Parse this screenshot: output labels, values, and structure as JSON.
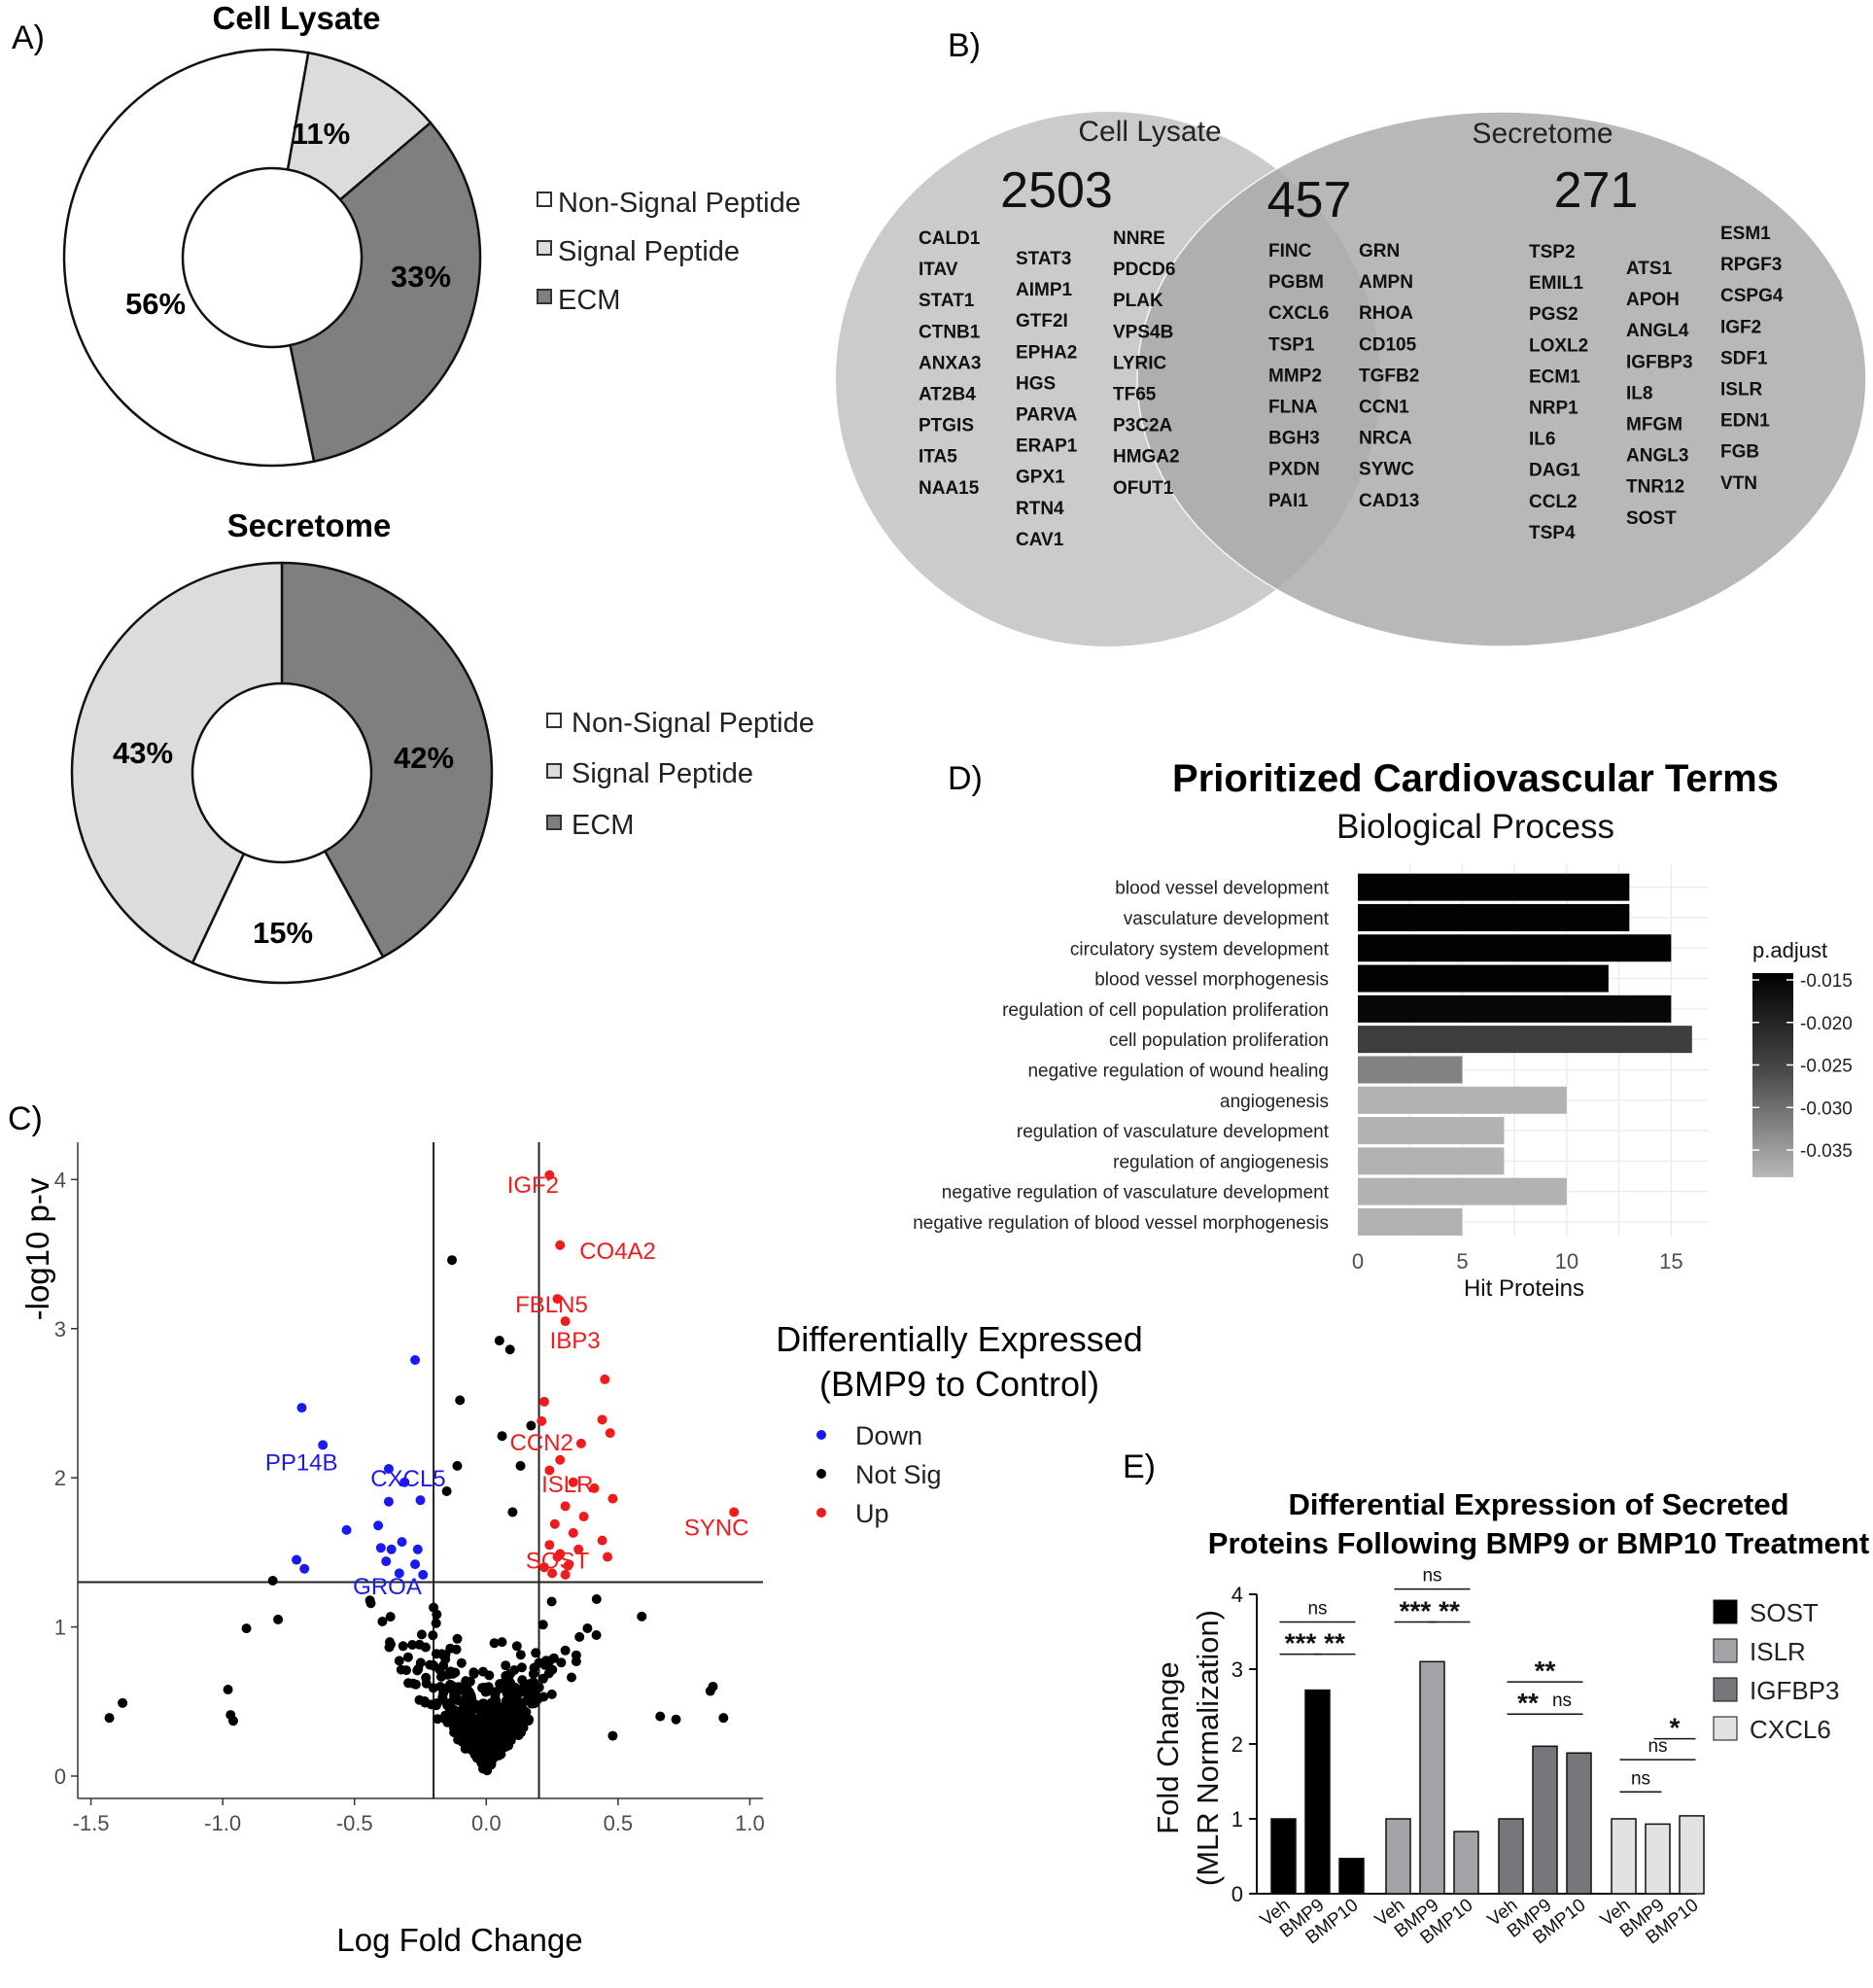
{
  "panel_labels": {
    "a": "A)",
    "b": "B)",
    "c": "C)",
    "d": "D)",
    "e": "E)"
  },
  "colors": {
    "non_signal": "#ffffff",
    "signal": "#dcdcdc",
    "ecm": "#7f7f7f",
    "up": "#ee1c1c",
    "down": "#1a1af0",
    "not_sig": "#000000",
    "sost": "#000000",
    "islr": "#a3a3a7",
    "igfbp3": "#77777b",
    "cxcl6": "#e2e2e2"
  },
  "chart_data": [
    {
      "type": "pie",
      "id": "donut_lysate",
      "title": "Cell Lysate",
      "categories": [
        "Signal Peptide",
        "ECM",
        "Non-Signal Peptide"
      ],
      "values": [
        11,
        33,
        56
      ],
      "labels": [
        "11%",
        "33%",
        "56%"
      ],
      "legend": [
        "Non-Signal Peptide",
        "Signal Peptide",
        "ECM"
      ]
    },
    {
      "type": "pie",
      "id": "donut_secretome",
      "title": "Secretome",
      "categories": [
        "ECM",
        "Non-Signal Peptide",
        "Signal Peptide"
      ],
      "values": [
        42,
        15,
        43
      ],
      "labels": [
        "42%",
        "15%",
        "43%"
      ],
      "legend": [
        "Non-Signal Peptide",
        "Signal Peptide",
        "ECM"
      ]
    },
    {
      "type": "venn",
      "id": "venn",
      "sets": [
        {
          "name": "Cell Lysate",
          "count": "2503",
          "columns": [
            [
              "CALD1",
              "ITAV",
              "STAT1",
              "CTNB1",
              "ANXA3",
              "AT2B4",
              "PTGIS",
              "ITA5",
              "NAA15"
            ],
            [
              "STAT3",
              "AIMP1",
              "GTF2I",
              "EPHA2",
              "HGS",
              "PARVA",
              "ERAP1",
              "GPX1",
              "RTN4",
              "CAV1"
            ],
            [
              "NNRE",
              "PDCD6",
              "PLAK",
              "VPS4B",
              "LYRIC",
              "TF65",
              "P3C2A",
              "HMGA2",
              "OFUT1"
            ]
          ]
        },
        {
          "name": "Secretome",
          "count": "271",
          "columns": [
            [
              "TSP2",
              "EMIL1",
              "PGS2",
              "LOXL2",
              "ECM1",
              "NRP1",
              "IL6",
              "DAG1",
              "CCL2",
              "TSP4"
            ],
            [
              "ATS1",
              "APOH",
              "ANGL4",
              "IGFBP3",
              "IL8",
              "MFGM",
              "ANGL3",
              "TNR12",
              "SOST"
            ],
            [
              "ESM1",
              "RPGF3",
              "CSPG4",
              "IGF2",
              "SDF1",
              "ISLR",
              "EDN1",
              "FGB",
              "VTN"
            ]
          ]
        }
      ],
      "overlap": {
        "count": "457",
        "columns": [
          [
            "FINC",
            "PGBM",
            "CXCL6",
            "TSP1",
            "MMP2",
            "FLNA",
            "BGH3",
            "PXDN",
            "PAI1"
          ],
          [
            "GRN",
            "AMPN",
            "RHOA",
            "CD105",
            "TGFB2",
            "CCN1",
            "NRCA",
            "SYWC",
            "CAD13"
          ]
        ]
      }
    },
    {
      "type": "scatter",
      "id": "volcano",
      "xlabel": "Log Fold Change",
      "ylabel": "-log10 p-v",
      "xlim": [
        -1.55,
        1.05
      ],
      "ylim": [
        -0.15,
        4.25
      ],
      "xticks": [
        -1.5,
        -1.0,
        -0.5,
        0.0,
        0.5,
        1.0
      ],
      "xtick_labels": [
        "-1.5",
        "-1.0",
        "-0.5",
        "0.0",
        "0.5",
        "1.0"
      ],
      "yticks": [
        0,
        1,
        2,
        3,
        4
      ],
      "ytick_labels": [
        "0",
        "1",
        "2",
        "3",
        "4"
      ],
      "vlines": [
        -0.2,
        0.2
      ],
      "hline": 1.3,
      "legend_title": [
        "Differentially Expressed",
        "(BMP9 to Control)"
      ],
      "legend": [
        "Down",
        "Not Sig",
        "Up"
      ],
      "labeled_points": [
        {
          "label": "IGF2",
          "x": 0.24,
          "y": 4.03,
          "group": "up"
        },
        {
          "label": "CO4A2",
          "x": 0.28,
          "y": 3.56,
          "group": "up"
        },
        {
          "label": "FBLN5",
          "x": 0.27,
          "y": 3.2,
          "group": "up"
        },
        {
          "label": "IBP3",
          "x": 0.3,
          "y": 3.05,
          "group": "up"
        },
        {
          "label": "CCN2",
          "x": 0.21,
          "y": 2.38,
          "group": "up"
        },
        {
          "label": "ISLR",
          "x": 0.33,
          "y": 1.97,
          "group": "up"
        },
        {
          "label": "SYNC",
          "x": 0.94,
          "y": 1.77,
          "group": "up"
        },
        {
          "label": "SOST",
          "x": 0.27,
          "y": 1.47,
          "group": "up"
        },
        {
          "label": "PP14B",
          "x": -0.62,
          "y": 2.22,
          "group": "down"
        },
        {
          "label": "CXCL5",
          "x": -0.37,
          "y": 1.85,
          "group": "down"
        },
        {
          "label": "GROA",
          "x": -0.25,
          "y": 1.31,
          "group": "down"
        }
      ],
      "up_points": [
        [
          0.24,
          4.03
        ],
        [
          0.28,
          3.56
        ],
        [
          0.27,
          3.2
        ],
        [
          0.3,
          3.05
        ],
        [
          0.45,
          2.66
        ],
        [
          0.22,
          2.51
        ],
        [
          0.44,
          2.39
        ],
        [
          0.47,
          2.3
        ],
        [
          0.21,
          2.38
        ],
        [
          0.36,
          2.23
        ],
        [
          0.28,
          2.12
        ],
        [
          0.33,
          1.97
        ],
        [
          0.24,
          2.05
        ],
        [
          0.41,
          1.93
        ],
        [
          0.48,
          1.86
        ],
        [
          0.3,
          1.81
        ],
        [
          0.37,
          1.74
        ],
        [
          0.26,
          1.69
        ],
        [
          0.33,
          1.63
        ],
        [
          0.44,
          1.58
        ],
        [
          0.24,
          1.55
        ],
        [
          0.28,
          1.49
        ],
        [
          0.35,
          1.52
        ],
        [
          0.46,
          1.47
        ],
        [
          0.27,
          1.47
        ],
        [
          0.31,
          1.41
        ],
        [
          0.25,
          1.36
        ],
        [
          0.3,
          1.35
        ],
        [
          0.22,
          1.4
        ],
        [
          0.94,
          1.77
        ]
      ],
      "down_points": [
        [
          -0.27,
          2.79
        ],
        [
          -0.7,
          2.47
        ],
        [
          -0.62,
          2.22
        ],
        [
          -0.37,
          2.06
        ],
        [
          -0.31,
          1.97
        ],
        [
          -0.37,
          1.84
        ],
        [
          -0.25,
          1.85
        ],
        [
          -0.53,
          1.65
        ],
        [
          -0.41,
          1.68
        ],
        [
          -0.32,
          1.57
        ],
        [
          -0.4,
          1.53
        ],
        [
          -0.36,
          1.52
        ],
        [
          -0.26,
          1.52
        ],
        [
          -0.72,
          1.45
        ],
        [
          -0.38,
          1.44
        ],
        [
          -0.27,
          1.42
        ],
        [
          -0.69,
          1.39
        ],
        [
          -0.33,
          1.36
        ],
        [
          -0.24,
          1.35
        ]
      ],
      "not_sig_count": 560,
      "not_sig_outliers": [
        [
          -1.43,
          0.39
        ],
        [
          -1.38,
          0.49
        ],
        [
          -0.97,
          0.41
        ],
        [
          -0.96,
          0.37
        ],
        [
          -0.98,
          0.58
        ],
        [
          -0.91,
          0.99
        ],
        [
          -0.79,
          1.05
        ],
        [
          -0.81,
          1.31
        ],
        [
          0.59,
          1.07
        ],
        [
          0.66,
          0.4
        ],
        [
          0.72,
          0.38
        ],
        [
          0.85,
          0.57
        ],
        [
          0.86,
          0.6
        ],
        [
          0.9,
          0.39
        ],
        [
          0.48,
          0.27
        ],
        [
          -0.13,
          3.46
        ],
        [
          -0.1,
          2.52
        ],
        [
          0.06,
          2.28
        ],
        [
          0.05,
          2.92
        ],
        [
          0.09,
          2.86
        ],
        [
          -0.15,
          1.91
        ],
        [
          0.1,
          1.77
        ],
        [
          0.13,
          2.08
        ],
        [
          0.17,
          2.35
        ],
        [
          -0.11,
          2.08
        ],
        [
          -0.2,
          1.13
        ]
      ]
    },
    {
      "type": "bar",
      "id": "go_bars",
      "title": "Prioritized Cardiovascular Terms",
      "subtitle": "Biological Process",
      "xlabel": "Hit Proteins",
      "xticks": [
        "0",
        "5",
        "10",
        "15"
      ],
      "xlim": [
        0,
        16.8
      ],
      "categories": [
        "blood vessel development",
        "vasculature development",
        "circulatory system development",
        "blood vessel morphogenesis",
        "regulation of cell population proliferation",
        "cell population proliferation",
        "negative regulation of wound healing",
        "angiogenesis",
        "regulation of vasculature development",
        "regulation of angiogenesis",
        "negative regulation of vasculature development",
        "negative regulation of blood vessel morphogenesis"
      ],
      "values": [
        13,
        13,
        15,
        12,
        15,
        16,
        5,
        10,
        7,
        7,
        10,
        5
      ],
      "p_adjust": [
        -0.0145,
        -0.0145,
        -0.0145,
        -0.0145,
        -0.0155,
        -0.024,
        -0.032,
        -0.0375,
        -0.0375,
        -0.0375,
        -0.0375,
        -0.0375
      ],
      "colorbar_title": "p.adjust",
      "colorbar_range": [
        -0.0382,
        -0.0142
      ],
      "colorbar_ticks": [
        -0.015,
        -0.02,
        -0.025,
        -0.03,
        -0.035
      ],
      "colorbar_tick_labels": [
        "-0.015",
        "-0.020",
        "-0.025",
        "-0.030",
        "-0.035"
      ]
    },
    {
      "type": "bar",
      "id": "fold_change",
      "title": [
        "Differential Expression of Secreted",
        "Proteins Following BMP9 or BMP10 Treatment"
      ],
      "ylabel": [
        "Fold Change",
        "(MLR Normalization)"
      ],
      "ylim": [
        0,
        4
      ],
      "yticks": [
        "0",
        "1",
        "2",
        "3",
        "4"
      ],
      "categories": [
        "Veh",
        "BMP9",
        "BMP10"
      ],
      "series": [
        {
          "name": "SOST",
          "values": [
            1.0,
            2.72,
            0.47
          ],
          "sig": [
            "***",
            "**",
            "ns"
          ]
        },
        {
          "name": "ISLR",
          "values": [
            1.0,
            3.1,
            0.83
          ],
          "sig": [
            "***",
            "**",
            "ns"
          ]
        },
        {
          "name": "IGFBP3",
          "values": [
            1.0,
            1.97,
            1.88
          ],
          "sig": [
            "**",
            "ns",
            "**"
          ]
        },
        {
          "name": "CXCL6",
          "values": [
            1.0,
            0.93,
            1.04
          ],
          "sig": [
            "ns",
            "*",
            "ns"
          ]
        }
      ]
    }
  ]
}
